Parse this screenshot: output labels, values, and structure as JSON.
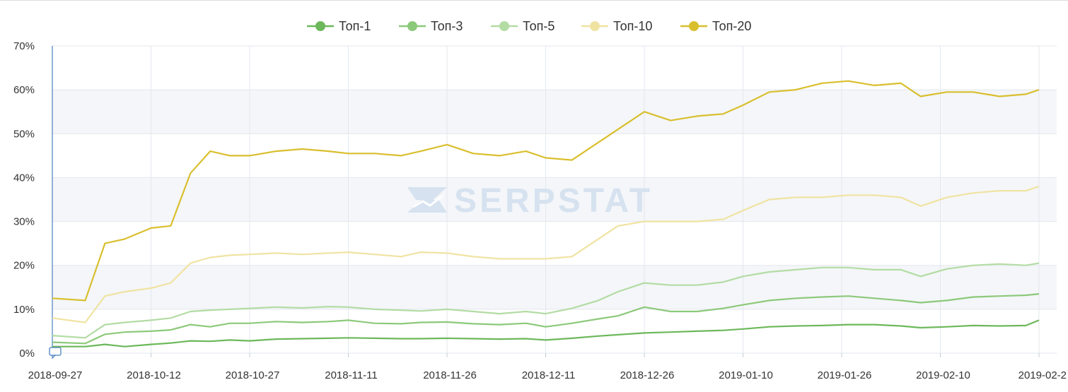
{
  "chart_data": {
    "type": "line",
    "title": "",
    "xlabel": "",
    "ylabel": "",
    "y_unit": "%",
    "ylim": [
      0,
      70
    ],
    "y_ticks": [
      "0%",
      "10%",
      "20%",
      "30%",
      "40%",
      "50%",
      "60%",
      "70%"
    ],
    "x_tick_labels": [
      "2018-09-27",
      "2018-10-12",
      "2018-10-27",
      "2018-11-11",
      "2018-11-26",
      "2018-12-11",
      "2018-12-26",
      "2019-01-10",
      "2019-01-26",
      "2019-02-10",
      "2019-02-2"
    ],
    "x": [
      "2018-09-27",
      "2018-10-02",
      "2018-10-05",
      "2018-10-08",
      "2018-10-12",
      "2018-10-15",
      "2018-10-18",
      "2018-10-21",
      "2018-10-24",
      "2018-10-27",
      "2018-10-31",
      "2018-11-04",
      "2018-11-08",
      "2018-11-11",
      "2018-11-15",
      "2018-11-19",
      "2018-11-22",
      "2018-11-26",
      "2018-11-30",
      "2018-12-04",
      "2018-12-08",
      "2018-12-11",
      "2018-12-15",
      "2018-12-19",
      "2018-12-22",
      "2018-12-26",
      "2018-12-30",
      "2019-01-03",
      "2019-01-07",
      "2019-01-10",
      "2019-01-14",
      "2019-01-18",
      "2019-01-22",
      "2019-01-26",
      "2019-01-30",
      "2019-02-03",
      "2019-02-06",
      "2019-02-10",
      "2019-02-14",
      "2019-02-18",
      "2019-02-22",
      "2019-02-24"
    ],
    "series": [
      {
        "name": "Топ-1",
        "color": "#6cb85a",
        "values": [
          1.5,
          1.5,
          2.0,
          1.5,
          2.0,
          2.3,
          2.8,
          2.7,
          3.0,
          2.8,
          3.2,
          3.3,
          3.4,
          3.5,
          3.4,
          3.3,
          3.3,
          3.4,
          3.3,
          3.2,
          3.3,
          3.0,
          3.4,
          3.9,
          4.2,
          4.6,
          4.8,
          5.0,
          5.2,
          5.5,
          6.0,
          6.2,
          6.3,
          6.5,
          6.5,
          6.2,
          5.8,
          6.0,
          6.3,
          6.2,
          6.3,
          7.5
        ]
      },
      {
        "name": "Топ-3",
        "color": "#8cc97a",
        "values": [
          2.5,
          2.2,
          4.3,
          4.8,
          5.0,
          5.3,
          6.5,
          6.0,
          6.8,
          6.8,
          7.2,
          7.0,
          7.2,
          7.5,
          6.8,
          6.7,
          7.0,
          7.1,
          6.7,
          6.5,
          6.8,
          6.0,
          6.8,
          7.8,
          8.5,
          10.5,
          9.5,
          9.5,
          10.2,
          11.0,
          12.0,
          12.5,
          12.8,
          13.0,
          12.5,
          12.0,
          11.5,
          12.0,
          12.8,
          13.0,
          13.2,
          13.5
        ]
      },
      {
        "name": "Топ-5",
        "color": "#b3dca4",
        "values": [
          4.0,
          3.5,
          6.5,
          7.0,
          7.5,
          8.0,
          9.5,
          9.8,
          10.0,
          10.2,
          10.5,
          10.3,
          10.6,
          10.5,
          10.0,
          9.8,
          9.6,
          10.0,
          9.5,
          9.0,
          9.5,
          9.0,
          10.2,
          12.0,
          14.0,
          16.0,
          15.5,
          15.5,
          16.2,
          17.5,
          18.5,
          19.0,
          19.5,
          19.5,
          19.0,
          19.0,
          17.5,
          19.2,
          20.0,
          20.3,
          20.0,
          20.5
        ]
      },
      {
        "name": "Топ-10",
        "color": "#f0e3a2",
        "values": [
          8.0,
          7.0,
          13.0,
          14.0,
          14.8,
          16.0,
          20.5,
          21.8,
          22.3,
          22.5,
          22.8,
          22.5,
          22.8,
          23.0,
          22.5,
          22.0,
          23.0,
          22.8,
          22.0,
          21.5,
          21.5,
          21.5,
          22.0,
          26.0,
          29.0,
          30.0,
          30.0,
          30.0,
          30.5,
          32.5,
          35.0,
          35.5,
          35.5,
          36.0,
          36.0,
          35.5,
          33.5,
          35.5,
          36.5,
          37.0,
          37.0,
          38.0
        ]
      },
      {
        "name": "Топ-20",
        "color": "#d9bf2e",
        "values": [
          12.5,
          12.0,
          25.0,
          26.0,
          28.5,
          29.0,
          41.0,
          46.0,
          45.0,
          45.0,
          46.0,
          46.5,
          46.0,
          45.5,
          45.5,
          45.0,
          46.0,
          47.5,
          45.5,
          45.0,
          46.0,
          44.5,
          44.0,
          48.0,
          51.0,
          55.0,
          53.0,
          54.0,
          54.5,
          56.5,
          59.5,
          60.0,
          61.5,
          62.0,
          61.0,
          61.5,
          58.5,
          59.5,
          59.5,
          58.5,
          59.0,
          60.0
        ]
      }
    ],
    "grid": true,
    "legend_position": "top-center",
    "watermark": "SERPSTAT"
  }
}
